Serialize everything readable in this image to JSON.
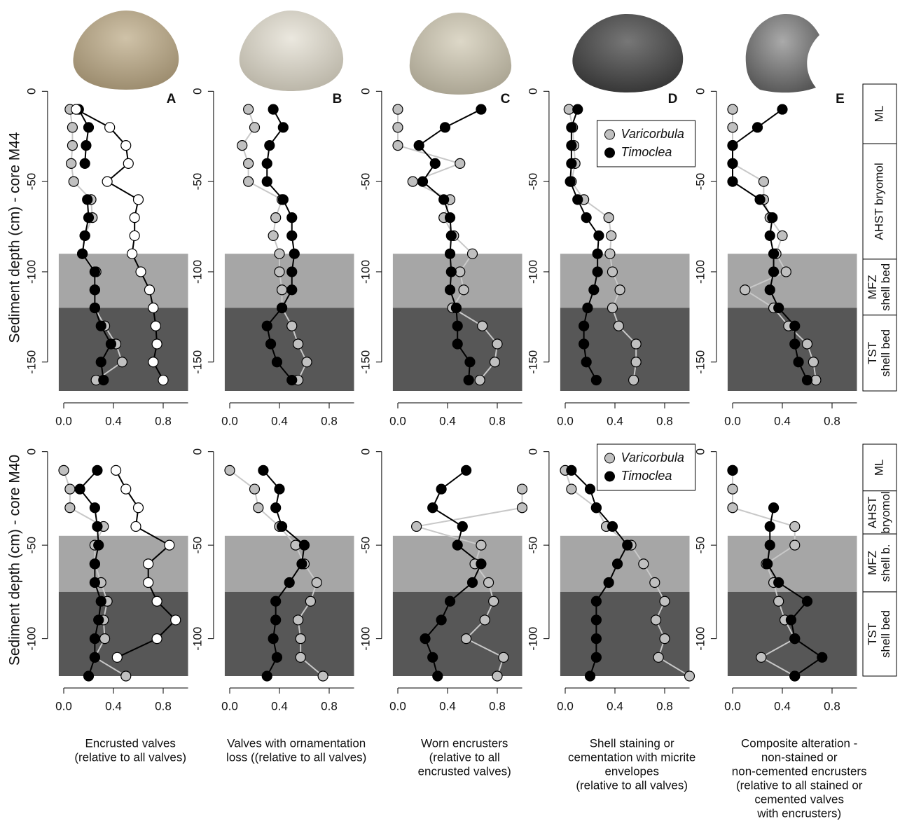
{
  "chart_data": [
    {
      "type": "line",
      "panel": "A",
      "ylabel": "Sediment depth (cm) - core M44",
      "y": [
        -10,
        -20,
        -30,
        -40,
        -50,
        -60,
        -70,
        -80,
        -90,
        -100,
        -110,
        -120,
        -130,
        -140,
        -150,
        -160
      ],
      "series": [
        {
          "name": "Varicorbula",
          "color": "#c0c0c0",
          "line_color": "#c8c8c8",
          "values": [
            0.05,
            0.07,
            0.07,
            0.06,
            0.08,
            0.22,
            0.23,
            0.17,
            0.15,
            0.26,
            0.25,
            0.25,
            0.33,
            0.42,
            0.47,
            0.26
          ]
        },
        {
          "name": "Timoclea",
          "color": "#000000",
          "line_color": "#000000",
          "values": [
            0.12,
            0.2,
            0.18,
            0.17,
            null,
            0.19,
            0.2,
            0.17,
            0.15,
            0.25,
            0.25,
            0.25,
            0.3,
            0.38,
            0.3,
            0.32
          ]
        },
        {
          "color": "#ffffff",
          "line_color": "#000000",
          "values": [
            0.1,
            0.37,
            0.5,
            0.52,
            0.35,
            0.6,
            0.57,
            0.57,
            0.55,
            0.62,
            0.69,
            0.72,
            0.74,
            0.75,
            0.72,
            0.8
          ]
        }
      ],
      "zones": [
        {
          "from": -90,
          "to": -120,
          "color": "#a6a6a6"
        },
        {
          "from": -120,
          "to": -166,
          "color": "#575757"
        }
      ],
      "xlim": [
        -0.04,
        1.0
      ],
      "ylim": [
        -166,
        4
      ],
      "xticks": [
        {
          "value": 0,
          "label": "0.0"
        },
        {
          "value": 0.4,
          "label": "0.4"
        },
        {
          "value": 0.8,
          "label": "0.8"
        }
      ],
      "yticks": [
        0,
        -50,
        -100,
        -150
      ]
    },
    {
      "type": "line",
      "panel": "B",
      "y": [
        -10,
        -20,
        -30,
        -40,
        -50,
        -60,
        -70,
        -80,
        -90,
        -100,
        -110,
        -120,
        -130,
        -140,
        -150,
        -160
      ],
      "series": [
        {
          "name": "Varicorbula",
          "color": "#c0c0c0",
          "line_color": "#c8c8c8",
          "values": [
            0.15,
            0.2,
            0.1,
            0.15,
            0.15,
            0.42,
            0.37,
            0.35,
            0.4,
            0.4,
            0.42,
            0.42,
            0.5,
            0.55,
            0.62,
            0.55
          ]
        },
        {
          "name": "Timoclea",
          "color": "#000000",
          "line_color": "#000000",
          "values": [
            0.35,
            0.43,
            0.32,
            0.3,
            0.3,
            0.43,
            0.5,
            0.5,
            0.52,
            0.5,
            0.5,
            0.42,
            0.3,
            0.33,
            0.38,
            0.5
          ]
        }
      ],
      "zones": [
        {
          "from": -90,
          "to": -120,
          "color": "#a6a6a6"
        },
        {
          "from": -120,
          "to": -166,
          "color": "#575757"
        }
      ],
      "xlim": [
        -0.04,
        1.0
      ],
      "ylim": [
        -166,
        4
      ],
      "xticks": [
        {
          "value": 0,
          "label": "0.0"
        },
        {
          "value": 0.4,
          "label": "0.4"
        },
        {
          "value": 0.8,
          "label": "0.8"
        }
      ],
      "yticks": [
        0,
        -50,
        -100,
        -150
      ]
    },
    {
      "type": "line",
      "panel": "C",
      "y": [
        -10,
        -20,
        -30,
        -40,
        -50,
        -60,
        -70,
        -80,
        -90,
        -100,
        -110,
        -120,
        -130,
        -140,
        -150,
        -160
      ],
      "series": [
        {
          "name": "Varicorbula",
          "color": "#c0c0c0",
          "line_color": "#c8c8c8",
          "values": [
            0,
            0,
            0,
            0.5,
            0.12,
            0.42,
            0.37,
            0.45,
            0.6,
            0.5,
            0.53,
            0.44,
            0.68,
            0.8,
            0.78,
            0.66
          ]
        },
        {
          "name": "Timoclea",
          "color": "#000000",
          "line_color": "#000000",
          "values": [
            0.67,
            0.38,
            0.17,
            0.3,
            0.2,
            0.37,
            0.42,
            0.43,
            0.42,
            0.43,
            0.42,
            0.47,
            0.48,
            0.48,
            0.58,
            0.57
          ]
        }
      ],
      "zones": [
        {
          "from": -90,
          "to": -120,
          "color": "#a6a6a6"
        },
        {
          "from": -120,
          "to": -166,
          "color": "#575757"
        }
      ],
      "xlim": [
        -0.04,
        1.0
      ],
      "ylim": [
        -166,
        4
      ],
      "xticks": [
        {
          "value": 0,
          "label": "0.0"
        },
        {
          "value": 0.4,
          "label": "0.4"
        },
        {
          "value": 0.8,
          "label": "0.8"
        }
      ],
      "yticks": [
        0,
        -50,
        -100,
        -150
      ]
    },
    {
      "type": "line",
      "panel": "D",
      "legend": "top-right",
      "y": [
        -10,
        -20,
        -30,
        -40,
        -50,
        -60,
        -70,
        -80,
        -90,
        -100,
        -110,
        -120,
        -130,
        -140,
        -150,
        -160
      ],
      "series": [
        {
          "name": "Varicorbula",
          "color": "#c0c0c0",
          "line_color": "#c8c8c8",
          "values": [
            0.03,
            0.06,
            0.07,
            0.08,
            0.05,
            0.15,
            0.35,
            0.37,
            0.36,
            0.38,
            0.44,
            0.38,
            0.43,
            0.57,
            0.57,
            0.55
          ]
        },
        {
          "name": "Timoclea",
          "color": "#000000",
          "line_color": "#000000",
          "values": [
            0.1,
            0.05,
            0.05,
            0.05,
            0.04,
            0.1,
            0.17,
            0.27,
            0.26,
            0.26,
            0.23,
            0.18,
            0.15,
            0.15,
            0.17,
            0.25
          ]
        }
      ],
      "zones": [
        {
          "from": -90,
          "to": -120,
          "color": "#a6a6a6"
        },
        {
          "from": -120,
          "to": -166,
          "color": "#575757"
        }
      ],
      "xlim": [
        -0.04,
        1.0
      ],
      "ylim": [
        -166,
        4
      ],
      "xticks": [
        {
          "value": 0,
          "label": "0.0"
        },
        {
          "value": 0.4,
          "label": "0.4"
        },
        {
          "value": 0.8,
          "label": "0.8"
        }
      ],
      "yticks": [
        0,
        -50,
        -100,
        -150
      ]
    },
    {
      "type": "line",
      "panel": "E",
      "y": [
        -10,
        -20,
        -30,
        -40,
        -50,
        -60,
        -70,
        -80,
        -90,
        -100,
        -110,
        -120,
        -130,
        -140,
        -150,
        -160
      ],
      "series": [
        {
          "name": "Varicorbula",
          "color": "#c0c0c0",
          "line_color": "#c8c8c8",
          "values": [
            0,
            0,
            0,
            0,
            0.25,
            0.25,
            0.3,
            0.4,
            0.35,
            0.43,
            0.1,
            0.33,
            0.45,
            0.6,
            0.65,
            0.67
          ]
        },
        {
          "name": "Timoclea",
          "color": "#000000",
          "line_color": "#000000",
          "values": [
            0.4,
            0.2,
            0,
            0,
            0,
            0.22,
            0.32,
            0.3,
            0.33,
            0.33,
            0.3,
            0.37,
            0.5,
            0.5,
            0.53,
            0.6
          ]
        }
      ],
      "zones": [
        {
          "from": -90,
          "to": -120,
          "color": "#a6a6a6"
        },
        {
          "from": -120,
          "to": -166,
          "color": "#575757"
        }
      ],
      "units": [
        {
          "lines": [
            "ML"
          ],
          "from": 4,
          "to": -29
        },
        {
          "lines": [
            "AHST bryomol"
          ],
          "from": -29,
          "to": -93
        },
        {
          "lines": [
            "MFZ",
            "shell bed"
          ],
          "from": -93,
          "to": -124
        },
        {
          "lines": [
            "TST",
            "shell bed"
          ],
          "from": -124,
          "to": -166
        }
      ],
      "xlim": [
        -0.04,
        1.0
      ],
      "ylim": [
        -166,
        4
      ],
      "xticks": [
        {
          "value": 0,
          "label": "0.0"
        },
        {
          "value": 0.4,
          "label": "0.4"
        },
        {
          "value": 0.8,
          "label": "0.8"
        }
      ],
      "yticks": [
        0,
        -50,
        -100,
        -150
      ]
    },
    {
      "type": "line",
      "ylabel": "Sediment depth (cm) - core M40",
      "xlabel": [
        "Encrusted valves",
        "(relative to all valves)"
      ],
      "y": [
        -10,
        -20,
        -30,
        -40,
        -50,
        -60,
        -70,
        -80,
        -90,
        -100,
        -110,
        -120
      ],
      "series": [
        {
          "name": "Varicorbula",
          "color": "#c0c0c0",
          "line_color": "#c8c8c8",
          "values": [
            0,
            0.05,
            0.05,
            0.32,
            0.25,
            0.25,
            0.3,
            0.35,
            0.32,
            0.33,
            0.25,
            0.5
          ]
        },
        {
          "name": "Timoclea",
          "color": "#000000",
          "line_color": "#000000",
          "values": [
            0.27,
            0.13,
            0.25,
            0.27,
            0.28,
            0.25,
            0.25,
            0.3,
            0.28,
            0.25,
            0.25,
            0.2
          ]
        },
        {
          "color": "#ffffff",
          "line_color": "#000000",
          "values": [
            0.42,
            0.5,
            0.6,
            0.58,
            0.85,
            0.68,
            0.68,
            0.75,
            0.9,
            0.75,
            0.43,
            null
          ]
        }
      ],
      "zones": [
        {
          "from": -45,
          "to": -75,
          "color": "#a6a6a6"
        },
        {
          "from": -75,
          "to": -120,
          "color": "#575757"
        }
      ],
      "xlim": [
        -0.04,
        1.0
      ],
      "ylim": [
        -120,
        4
      ],
      "xticks": [
        {
          "value": 0,
          "label": "0.0"
        },
        {
          "value": 0.4,
          "label": "0.4"
        },
        {
          "value": 0.8,
          "label": "0.8"
        }
      ],
      "yticks": [
        0,
        -50,
        -100
      ]
    },
    {
      "type": "line",
      "xlabel": [
        "Valves with ornamentation",
        "loss ((relative to all valves)"
      ],
      "y": [
        -10,
        -20,
        -30,
        -40,
        -50,
        -60,
        -70,
        -80,
        -90,
        -100,
        -110,
        -120
      ],
      "series": [
        {
          "name": "Varicorbula",
          "color": "#c0c0c0",
          "line_color": "#c8c8c8",
          "values": [
            0,
            0.2,
            0.23,
            0.4,
            0.53,
            0.6,
            0.7,
            0.65,
            0.55,
            0.57,
            0.57,
            0.75
          ]
        },
        {
          "name": "Timoclea",
          "color": "#000000",
          "line_color": "#000000",
          "values": [
            0.27,
            0.4,
            0.37,
            0.42,
            0.6,
            0.58,
            0.48,
            0.37,
            0.37,
            0.35,
            0.38,
            0.3
          ]
        }
      ],
      "zones": [
        {
          "from": -45,
          "to": -75,
          "color": "#a6a6a6"
        },
        {
          "from": -75,
          "to": -120,
          "color": "#575757"
        }
      ],
      "xlim": [
        -0.04,
        1.0
      ],
      "ylim": [
        -120,
        4
      ],
      "xticks": [
        {
          "value": 0,
          "label": "0.0"
        },
        {
          "value": 0.4,
          "label": "0.4"
        },
        {
          "value": 0.8,
          "label": "0.8"
        }
      ],
      "yticks": [
        0,
        -50,
        -100
      ]
    },
    {
      "type": "line",
      "xlabel": [
        "Worn encrusters",
        "(relative to all",
        "encrusted valves)"
      ],
      "y": [
        -10,
        -20,
        -30,
        -40,
        -50,
        -60,
        -70,
        -80,
        -90,
        -100,
        -110,
        -120
      ],
      "series": [
        {
          "name": "Varicorbula",
          "color": "#c0c0c0",
          "line_color": "#c8c8c8",
          "values": [
            null,
            1.0,
            1.0,
            0.15,
            0.67,
            0.62,
            0.73,
            0.77,
            0.7,
            0.55,
            0.85,
            0.8
          ]
        },
        {
          "name": "Timoclea",
          "color": "#000000",
          "line_color": "#000000",
          "values": [
            0.55,
            0.35,
            0.28,
            0.52,
            0.48,
            0.67,
            0.6,
            0.42,
            0.35,
            0.22,
            0.28,
            0.32
          ]
        }
      ],
      "zones": [
        {
          "from": -45,
          "to": -75,
          "color": "#a6a6a6"
        },
        {
          "from": -75,
          "to": -120,
          "color": "#575757"
        }
      ],
      "xlim": [
        -0.04,
        1.0
      ],
      "ylim": [
        -120,
        4
      ],
      "xticks": [
        {
          "value": 0,
          "label": "0.0"
        },
        {
          "value": 0.4,
          "label": "0.4"
        },
        {
          "value": 0.8,
          "label": "0.8"
        }
      ],
      "yticks": [
        0,
        -50,
        -100
      ]
    },
    {
      "type": "line",
      "legend": "top-right",
      "xlabel": [
        "Shell staining or",
        "cementation with micrite",
        "envelopes",
        "(relative to all valves)"
      ],
      "y": [
        -10,
        -20,
        -30,
        -40,
        -50,
        -60,
        -70,
        -80,
        -90,
        -100,
        -110,
        -120
      ],
      "series": [
        {
          "name": "Varicorbula",
          "color": "#c0c0c0",
          "line_color": "#c8c8c8",
          "values": [
            0,
            0.05,
            0.25,
            0.33,
            0.53,
            0.63,
            0.72,
            0.8,
            0.73,
            0.8,
            0.75,
            1.0
          ]
        },
        {
          "name": "Timoclea",
          "color": "#000000",
          "line_color": "#000000",
          "values": [
            0.05,
            0.2,
            0.25,
            0.38,
            0.5,
            0.42,
            0.35,
            0.25,
            0.25,
            0.25,
            0.25,
            0.2
          ]
        }
      ],
      "zones": [
        {
          "from": -45,
          "to": -75,
          "color": "#a6a6a6"
        },
        {
          "from": -75,
          "to": -120,
          "color": "#575757"
        }
      ],
      "xlim": [
        -0.04,
        1.0
      ],
      "ylim": [
        -120,
        4
      ],
      "xticks": [
        {
          "value": 0,
          "label": "0.0"
        },
        {
          "value": 0.4,
          "label": "0.4"
        },
        {
          "value": 0.8,
          "label": "0.8"
        }
      ],
      "yticks": [
        0,
        -50,
        -100
      ]
    },
    {
      "type": "line",
      "xlabel": [
        "Composite alteration -",
        "non-stained or",
        "non-cemented encrusters",
        "(relative to all stained or",
        "cemented valves",
        "with encrusters)"
      ],
      "y": [
        -10,
        -20,
        -30,
        -40,
        -50,
        -60,
        -70,
        -80,
        -90,
        -100,
        -110,
        -120
      ],
      "series": [
        {
          "name": "Varicorbula",
          "color": "#c0c0c0",
          "line_color": "#c8c8c8",
          "values": [
            0,
            0,
            0,
            0.5,
            0.5,
            0.27,
            0.33,
            0.37,
            0.42,
            0.5,
            0.23,
            0.5
          ]
        },
        {
          "name": "Timoclea",
          "color": "#000000",
          "line_color": "#000000",
          "values": [
            0,
            null,
            0.33,
            0.3,
            0.3,
            0.28,
            0.37,
            0.6,
            0.47,
            0.5,
            0.72,
            0.5
          ]
        }
      ],
      "zones": [
        {
          "from": -45,
          "to": -75,
          "color": "#a6a6a6"
        },
        {
          "from": -75,
          "to": -120,
          "color": "#575757"
        }
      ],
      "units": [
        {
          "lines": [
            "ML"
          ],
          "from": 4,
          "to": -21
        },
        {
          "lines": [
            "AHST",
            "bryomol"
          ],
          "from": -21,
          "to": -44
        },
        {
          "lines": [
            "MFZ",
            "shell b."
          ],
          "from": -44,
          "to": -75
        },
        {
          "lines": [
            "TST",
            "shell bed"
          ],
          "from": -75,
          "to": -120
        }
      ],
      "xlim": [
        -0.04,
        1.0
      ],
      "ylim": [
        -120,
        4
      ],
      "xticks": [
        {
          "value": 0,
          "label": "0.0"
        },
        {
          "value": 0.4,
          "label": "0.4"
        },
        {
          "value": 0.8,
          "label": "0.8"
        }
      ],
      "yticks": [
        0,
        -50,
        -100
      ]
    }
  ]
}
